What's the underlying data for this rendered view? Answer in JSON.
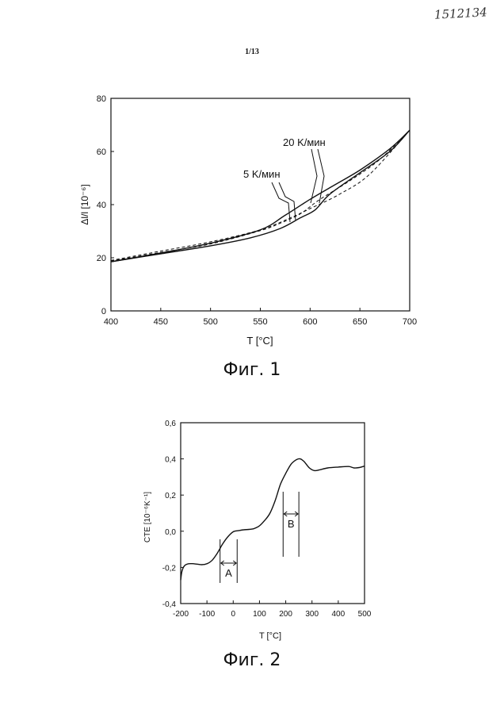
{
  "document": {
    "number": "1512134",
    "page": "1/13"
  },
  "figures": [
    {
      "caption": "Фиг. 1",
      "xlabel": "T [°C]",
      "ylabel": "Δl/l [10⁻⁶]",
      "annotations": [
        "20 K/мин",
        "5 K/мин"
      ]
    },
    {
      "caption": "Фиг. 2",
      "xlabel": "T [°C]",
      "ylabel": "CTE [10⁻⁶K⁻¹]",
      "annotations": [
        "A",
        "B"
      ]
    }
  ],
  "chart_data": [
    {
      "type": "line",
      "xlabel": "T [°C]",
      "ylabel": "Δl/l [10⁻⁶]",
      "xlim": [
        400,
        700
      ],
      "ylim": [
        0,
        80
      ],
      "xticks": [
        "400",
        "450",
        "500",
        "550",
        "600",
        "650",
        "700"
      ],
      "yticks": [
        "0",
        "20",
        "40",
        "60",
        "80"
      ],
      "grid": false,
      "series": [
        {
          "name": "20 K/мин",
          "style": "solid",
          "x": [
            400,
            450,
            500,
            540,
            570,
            590,
            605,
            620,
            650,
            680,
            700
          ],
          "y": [
            18.5,
            21.5,
            24.5,
            27.5,
            31,
            35,
            38,
            44,
            52,
            60,
            68
          ]
        },
        {
          "name": "5 K/мин",
          "style": "solid",
          "x": [
            400,
            450,
            500,
            550,
            575,
            600,
            625,
            650,
            680,
            700
          ],
          "y": [
            18.5,
            21.8,
            25.5,
            30.5,
            36,
            42,
            47.5,
            53,
            61,
            68
          ]
        },
        {
          "style": "dashed",
          "x": [
            400,
            450,
            500,
            550,
            580,
            600,
            630,
            660,
            700
          ],
          "y": [
            19,
            22.5,
            26,
            30.5,
            35,
            38.5,
            44,
            51.5,
            68
          ]
        },
        {
          "style": "dashed",
          "x": [
            400,
            450,
            500,
            550,
            570,
            590,
            610,
            640,
            670,
            700
          ],
          "y": [
            18.8,
            22,
            25.2,
            30.2,
            33,
            36.5,
            42,
            49,
            57,
            68
          ]
        }
      ]
    },
    {
      "type": "line",
      "xlabel": "T [°C]",
      "ylabel": "CTE [10⁻⁶K⁻¹]",
      "xlim": [
        -200,
        500
      ],
      "ylim": [
        -0.4,
        0.6
      ],
      "xticks": [
        "-200",
        "-100",
        "0",
        "100",
        "200",
        "300",
        "400",
        "500"
      ],
      "yticks": [
        "-0,4",
        "-0,2",
        "0,0",
        "0,2",
        "0,4",
        "0,6"
      ],
      "grid": false,
      "series": [
        {
          "style": "solid",
          "x": [
            -200,
            -195,
            -185,
            -170,
            -150,
            -120,
            -100,
            -80,
            -60,
            -40,
            -20,
            0,
            20,
            40,
            60,
            80,
            100,
            120,
            140,
            160,
            180,
            200,
            220,
            240,
            255,
            270,
            290,
            310,
            330,
            360,
            400,
            440,
            460,
            480,
            500
          ],
          "y": [
            -0.27,
            -0.22,
            -0.19,
            -0.18,
            -0.18,
            -0.185,
            -0.18,
            -0.16,
            -0.12,
            -0.07,
            -0.03,
            -0.003,
            0.003,
            0.008,
            0.01,
            0.015,
            0.03,
            0.06,
            0.1,
            0.17,
            0.26,
            0.32,
            0.37,
            0.395,
            0.4,
            0.385,
            0.35,
            0.335,
            0.34,
            0.35,
            0.355,
            0.358,
            0.35,
            0.352,
            0.36
          ]
        }
      ],
      "markers": [
        {
          "label": "A",
          "x1": -50,
          "x2": 15
        },
        {
          "label": "B",
          "x1": 190,
          "x2": 250
        }
      ]
    }
  ]
}
